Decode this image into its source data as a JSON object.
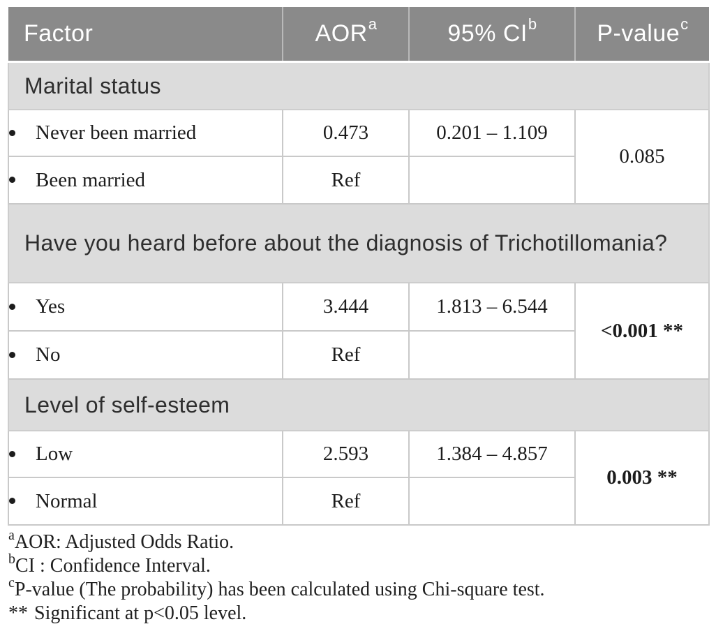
{
  "header": {
    "factor": "Factor",
    "aor": "AOR",
    "aor_sup": "a",
    "ci": "95% CI",
    "ci_sup": "b",
    "pvalue": "P-value",
    "pvalue_sup": "c"
  },
  "sections": [
    {
      "title": "Marital status",
      "rows": [
        {
          "factor": "Never been married",
          "aor": "0.473",
          "ci": "0.201 – 1.109"
        },
        {
          "factor": "Been married",
          "aor": "Ref",
          "ci": ""
        }
      ],
      "p_value": "0.085"
    },
    {
      "title": "Have you heard before about the diagnosis of Trichotillomania?",
      "rows": [
        {
          "factor": "Yes",
          "aor": "3.444",
          "ci": "1.813 – 6.544"
        },
        {
          "factor": "No",
          "aor": "Ref",
          "ci": ""
        }
      ],
      "p_value": "<0.001 **"
    },
    {
      "title": "Level of self-esteem",
      "rows": [
        {
          "factor": "Low",
          "aor": "2.593",
          "ci": "1.384 – 4.857"
        },
        {
          "factor": "Normal",
          "aor": "Ref",
          "ci": ""
        }
      ],
      "p_value": "0.003 **"
    }
  ],
  "footnotes": [
    {
      "sup": "a",
      "text": "AOR: Adjusted Odds Ratio."
    },
    {
      "sup": "b",
      "text": "CI : Confidence Interval."
    },
    {
      "sup": "c",
      "text": "P-value (The probability) has been calculated using Chi-square test."
    },
    {
      "sup": "**",
      "text": "Significant at p<0.05 level."
    }
  ],
  "colors": {
    "header_bg": "#8a8a8a",
    "header_text": "#ffffff",
    "section_bg": "#dcdcdc",
    "border": "#c9c9c9"
  }
}
